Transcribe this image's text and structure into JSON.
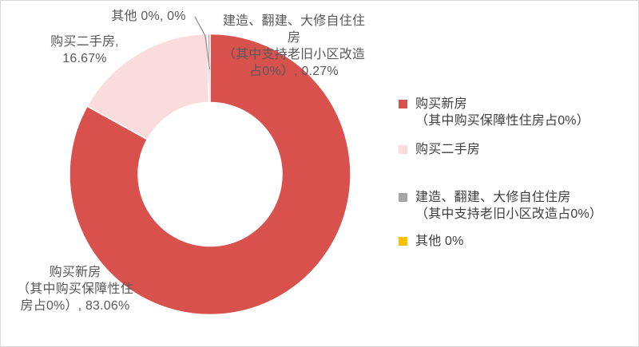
{
  "chart_data": {
    "type": "pie",
    "subtype": "donut",
    "title": "",
    "legend_position": "right",
    "start_angle_deg": 0,
    "direction": "clockwise",
    "hole_ratio": 0.51,
    "slices": [
      {
        "name": "购买新房（其中购买保障性住房占0%）",
        "value": 83.06,
        "color": "#d8514d"
      },
      {
        "name": "购买二手房",
        "value": 16.67,
        "color": "#fadcdc"
      },
      {
        "name": "建造、翻建、大修自住住房（其中支持老旧小区改造占0%）",
        "value": 0.27,
        "color": "#a6a6a6"
      },
      {
        "name": "其他",
        "value": 0,
        "color": "#ffc000"
      }
    ]
  },
  "data_labels": {
    "other": {
      "lines": [
        "其他  0%, 0%"
      ]
    },
    "secondhand": {
      "lines": [
        "购买二手房,",
        "16.67%"
      ]
    },
    "construct": {
      "lines": [
        "建造、翻建、大修自住住",
        "房",
        "（其中支持老旧小区改造",
        "占0%）, 0.27%"
      ]
    },
    "new_house": {
      "lines": [
        "购买新房",
        "（其中购买保障性住",
        "房占0%）, 83.06%"
      ]
    }
  },
  "legend": {
    "items": [
      {
        "lines": [
          "购买新房",
          "（其中购买保障性住房占0%）"
        ],
        "color": "#d8514d"
      },
      {
        "lines": [
          "购买二手房"
        ],
        "color": "#fadcdc"
      },
      {
        "lines": [
          "建造、翻建、大修自住住房",
          "（其中支持老旧小区改造占0%）"
        ],
        "color": "#a6a6a6"
      },
      {
        "lines": [
          "其他  0%"
        ],
        "color": "#ffc000"
      }
    ]
  },
  "colors": {
    "label_text": "#595959",
    "legend_text": "#3f3f3f",
    "leader_line": "#8c8c8c",
    "slice_border": "#ffffff",
    "chart_border": "#d9d9d9"
  }
}
